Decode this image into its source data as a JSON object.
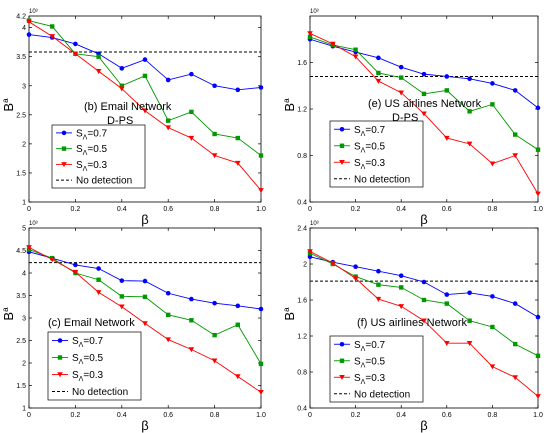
{
  "chart_data": [
    {
      "type": "line",
      "annotation_lines": [
        "(b) Email Network",
        "D-PS"
      ],
      "multiplier": "10³",
      "xlabel": "β",
      "ylabel_base": "B",
      "ylabel_sup": "a",
      "xlim": [
        0,
        1
      ],
      "ylim": [
        1,
        4.2
      ],
      "xticks": [
        0,
        0.2,
        0.4,
        0.6,
        0.8,
        1
      ],
      "xtick_labels": [
        "0",
        "0.2",
        "0.4",
        "0.6",
        "0.8",
        "1.0"
      ],
      "yticks": [
        1,
        1.5,
        2,
        2.5,
        3,
        3.5,
        4
      ],
      "ytick_labels": [
        "1",
        "1.5",
        "2",
        "2.5",
        "3",
        "3.5",
        "4"
      ],
      "ytop_label": "4.2",
      "legend_position": "middle-left",
      "x": [
        0,
        0.1,
        0.2,
        0.3,
        0.4,
        0.5,
        0.6,
        0.7,
        0.8,
        0.9,
        1.0
      ],
      "series": [
        {
          "name_base": "S",
          "name_sub": "Λ",
          "name_tail": "=0.7",
          "color": "#0000ff",
          "marker": "circle",
          "values": [
            3.88,
            3.83,
            3.72,
            3.55,
            3.3,
            3.45,
            3.1,
            3.2,
            3.0,
            2.93,
            2.97
          ]
        },
        {
          "name_base": "S",
          "name_sub": "Λ",
          "name_tail": "=0.5",
          "color": "#009900",
          "marker": "square",
          "values": [
            4.12,
            4.02,
            3.55,
            3.5,
            3.0,
            3.17,
            2.4,
            2.55,
            2.17,
            2.1,
            1.8
          ]
        },
        {
          "name_base": "S",
          "name_sub": "Λ",
          "name_tail": "=0.3",
          "color": "#ff0000",
          "marker": "triangle-down",
          "values": [
            4.1,
            3.85,
            3.55,
            3.25,
            2.95,
            2.57,
            2.28,
            2.1,
            1.8,
            1.67,
            1.2
          ]
        }
      ],
      "baseline": {
        "name": "No detection",
        "value": 3.58,
        "color": "#000000",
        "style": "dashed"
      }
    },
    {
      "type": "line",
      "annotation_lines": [
        "(e) US airlines Network",
        "D-PS"
      ],
      "multiplier": "10³",
      "xlabel": "β",
      "ylabel_base": "B",
      "ylabel_sup": "a",
      "xlim": [
        0,
        1
      ],
      "ylim": [
        0.4,
        2.0
      ],
      "xticks": [
        0,
        0.2,
        0.4,
        0.6,
        0.8,
        1
      ],
      "xtick_labels": [
        "0",
        "0.2",
        "0.4",
        "0.6",
        "0.8",
        "1.0"
      ],
      "yticks": [
        0.4,
        0.8,
        1.2,
        1.6
      ],
      "ytick_labels": [
        "0.4",
        "0.8",
        "1.2",
        "1.6"
      ],
      "ytop_label": "",
      "legend_position": "middle-left",
      "x": [
        0,
        0.1,
        0.2,
        0.3,
        0.4,
        0.5,
        0.6,
        0.7,
        0.8,
        0.9,
        1.0
      ],
      "series": [
        {
          "name_base": "S",
          "name_sub": "Λ",
          "name_tail": "=0.7",
          "color": "#0000ff",
          "marker": "circle",
          "values": [
            1.8,
            1.74,
            1.69,
            1.64,
            1.56,
            1.5,
            1.48,
            1.46,
            1.42,
            1.36,
            1.21
          ]
        },
        {
          "name_base": "S",
          "name_sub": "Λ",
          "name_tail": "=0.5",
          "color": "#009900",
          "marker": "square",
          "values": [
            1.82,
            1.75,
            1.71,
            1.51,
            1.47,
            1.33,
            1.36,
            1.18,
            1.24,
            0.98,
            0.85
          ]
        },
        {
          "name_base": "S",
          "name_sub": "Λ",
          "name_tail": "=0.3",
          "color": "#ff0000",
          "marker": "triangle-down",
          "values": [
            1.85,
            1.76,
            1.65,
            1.44,
            1.34,
            1.16,
            0.95,
            0.9,
            0.73,
            0.8,
            0.47
          ]
        }
      ],
      "baseline": {
        "name": "No detection",
        "value": 1.48,
        "color": "#000000",
        "style": "dashed"
      }
    },
    {
      "type": "line",
      "annotation_lines": [
        "(c) Email Network"
      ],
      "multiplier": "10³",
      "xlabel": "β",
      "ylabel_base": "B",
      "ylabel_sup": "a",
      "xlim": [
        0,
        1
      ],
      "ylim": [
        1,
        5
      ],
      "xticks": [
        0,
        0.2,
        0.4,
        0.6,
        0.8,
        1
      ],
      "xtick_labels": [
        "0",
        "0.2",
        "0.4",
        "0.6",
        "0.8",
        "1.0"
      ],
      "yticks": [
        1,
        1.5,
        2,
        2.5,
        3,
        3.5,
        4,
        4.5,
        5
      ],
      "ytick_labels": [
        "1",
        "1.5",
        "2",
        "2.5",
        "3",
        "3.5",
        "4",
        "4.5",
        "5"
      ],
      "ytop_label": "",
      "legend_position": "bottom-left",
      "x": [
        0,
        0.1,
        0.2,
        0.3,
        0.4,
        0.5,
        0.6,
        0.7,
        0.8,
        0.9,
        1.0
      ],
      "series": [
        {
          "name_base": "S",
          "name_sub": "Λ",
          "name_tail": "=0.7",
          "color": "#0000ff",
          "marker": "circle",
          "values": [
            4.47,
            4.33,
            4.18,
            4.1,
            3.83,
            3.82,
            3.55,
            3.42,
            3.33,
            3.27,
            3.2
          ]
        },
        {
          "name_base": "S",
          "name_sub": "Λ",
          "name_tail": "=0.5",
          "color": "#009900",
          "marker": "square",
          "values": [
            4.52,
            4.33,
            4.0,
            3.85,
            3.48,
            3.47,
            3.07,
            2.95,
            2.62,
            2.85,
            1.98
          ]
        },
        {
          "name_base": "S",
          "name_sub": "Λ",
          "name_tail": "=0.3",
          "color": "#ff0000",
          "marker": "triangle-down",
          "values": [
            4.57,
            4.3,
            4.02,
            3.57,
            3.25,
            2.88,
            2.52,
            2.3,
            2.05,
            1.7,
            1.35
          ]
        }
      ],
      "baseline": {
        "name": "No detection",
        "value": 4.23,
        "color": "#000000",
        "style": "dashed"
      }
    },
    {
      "type": "line",
      "annotation_lines": [
        "(f) US airlines Network"
      ],
      "multiplier": "10³",
      "xlabel": "β",
      "ylabel_base": "B",
      "ylabel_sup": "a",
      "xlim": [
        0,
        1
      ],
      "ylim": [
        0.4,
        2.4
      ],
      "xticks": [
        0,
        0.2,
        0.4,
        0.6,
        0.8,
        1
      ],
      "xtick_labels": [
        "0",
        "0.2",
        "0.4",
        "0.6",
        "0.8",
        "1.0"
      ],
      "yticks": [
        0.4,
        0.8,
        1.2,
        1.6,
        2,
        2.4
      ],
      "ytick_labels": [
        "0.4",
        "0.8",
        "1.2",
        "1.6",
        "2",
        "2.4"
      ],
      "ytop_label": "",
      "legend_position": "bottom-left",
      "x": [
        0,
        0.1,
        0.2,
        0.3,
        0.4,
        0.5,
        0.6,
        0.7,
        0.8,
        0.9,
        1.0
      ],
      "series": [
        {
          "name_base": "S",
          "name_sub": "Λ",
          "name_tail": "=0.7",
          "color": "#0000ff",
          "marker": "circle",
          "values": [
            2.08,
            2.02,
            1.97,
            1.92,
            1.87,
            1.8,
            1.66,
            1.68,
            1.64,
            1.56,
            1.41
          ]
        },
        {
          "name_base": "S",
          "name_sub": "Λ",
          "name_tail": "=0.5",
          "color": "#009900",
          "marker": "square",
          "values": [
            2.12,
            2.0,
            1.86,
            1.77,
            1.74,
            1.6,
            1.56,
            1.37,
            1.3,
            1.11,
            0.98
          ]
        },
        {
          "name_base": "S",
          "name_sub": "Λ",
          "name_tail": "=0.3",
          "color": "#ff0000",
          "marker": "triangle-down",
          "values": [
            2.14,
            2.01,
            1.84,
            1.61,
            1.53,
            1.37,
            1.12,
            1.12,
            0.86,
            0.74,
            0.53
          ]
        }
      ],
      "baseline": {
        "name": "No detection",
        "value": 1.81,
        "color": "#000000",
        "style": "dashed"
      }
    }
  ]
}
